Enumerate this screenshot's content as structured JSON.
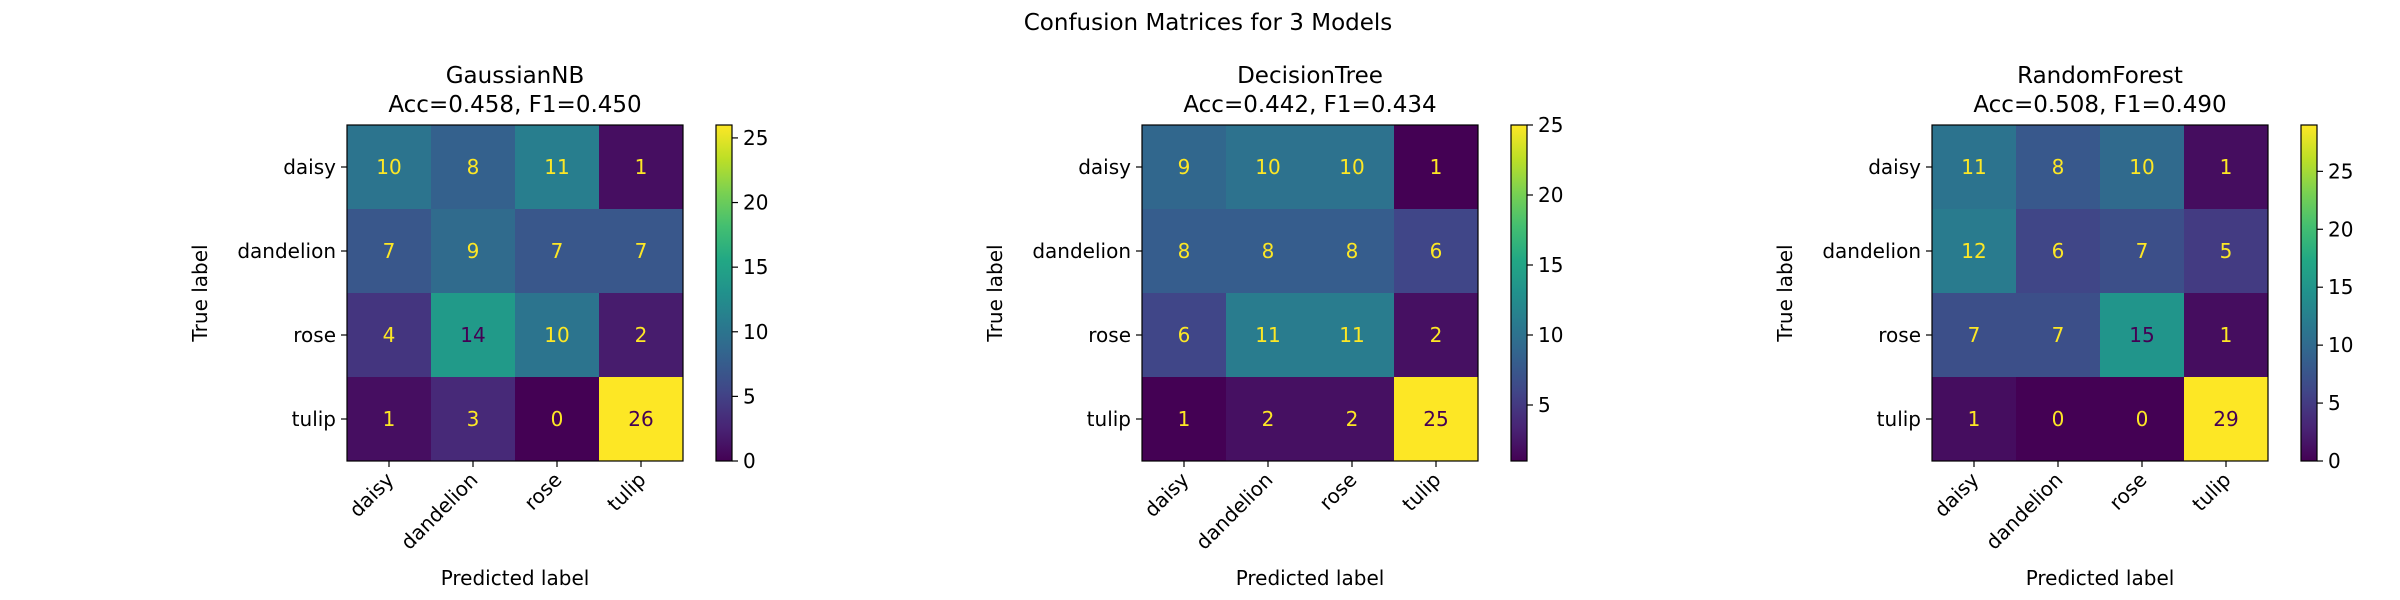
{
  "figure": {
    "suptitle": "Confusion Matrices for 3 Models"
  },
  "chart_data": [
    {
      "type": "heatmap",
      "title": "GaussianNB",
      "subtitle": "Acc=0.458, F1=0.450",
      "xlabel": "Predicted label",
      "ylabel": "True label",
      "x_categories": [
        "daisy",
        "dandelion",
        "rose",
        "tulip"
      ],
      "y_categories": [
        "daisy",
        "dandelion",
        "rose",
        "tulip"
      ],
      "values": [
        [
          10,
          8,
          11,
          1
        ],
        [
          7,
          9,
          7,
          7
        ],
        [
          4,
          14,
          10,
          2
        ],
        [
          1,
          3,
          0,
          26
        ]
      ],
      "colorbar": {
        "min": 0,
        "max": 26,
        "ticks": [
          0,
          5,
          10,
          15,
          20,
          25
        ]
      },
      "colormap": "viridis"
    },
    {
      "type": "heatmap",
      "title": "DecisionTree",
      "subtitle": "Acc=0.442, F1=0.434",
      "xlabel": "Predicted label",
      "ylabel": "True label",
      "x_categories": [
        "daisy",
        "dandelion",
        "rose",
        "tulip"
      ],
      "y_categories": [
        "daisy",
        "dandelion",
        "rose",
        "tulip"
      ],
      "values": [
        [
          9,
          10,
          10,
          1
        ],
        [
          8,
          8,
          8,
          6
        ],
        [
          6,
          11,
          11,
          2
        ],
        [
          1,
          2,
          2,
          25
        ]
      ],
      "colorbar": {
        "min": 1,
        "max": 25,
        "ticks": [
          5,
          10,
          15,
          20,
          25
        ]
      },
      "colormap": "viridis"
    },
    {
      "type": "heatmap",
      "title": "RandomForest",
      "subtitle": "Acc=0.508, F1=0.490",
      "xlabel": "Predicted label",
      "ylabel": "True label",
      "x_categories": [
        "daisy",
        "dandelion",
        "rose",
        "tulip"
      ],
      "y_categories": [
        "daisy",
        "dandelion",
        "rose",
        "tulip"
      ],
      "values": [
        [
          11,
          8,
          10,
          1
        ],
        [
          12,
          6,
          7,
          5
        ],
        [
          7,
          7,
          15,
          1
        ],
        [
          1,
          0,
          0,
          29
        ]
      ],
      "colorbar": {
        "min": 0,
        "max": 29,
        "ticks": [
          0,
          5,
          10,
          15,
          20,
          25
        ]
      },
      "colormap": "viridis"
    }
  ]
}
